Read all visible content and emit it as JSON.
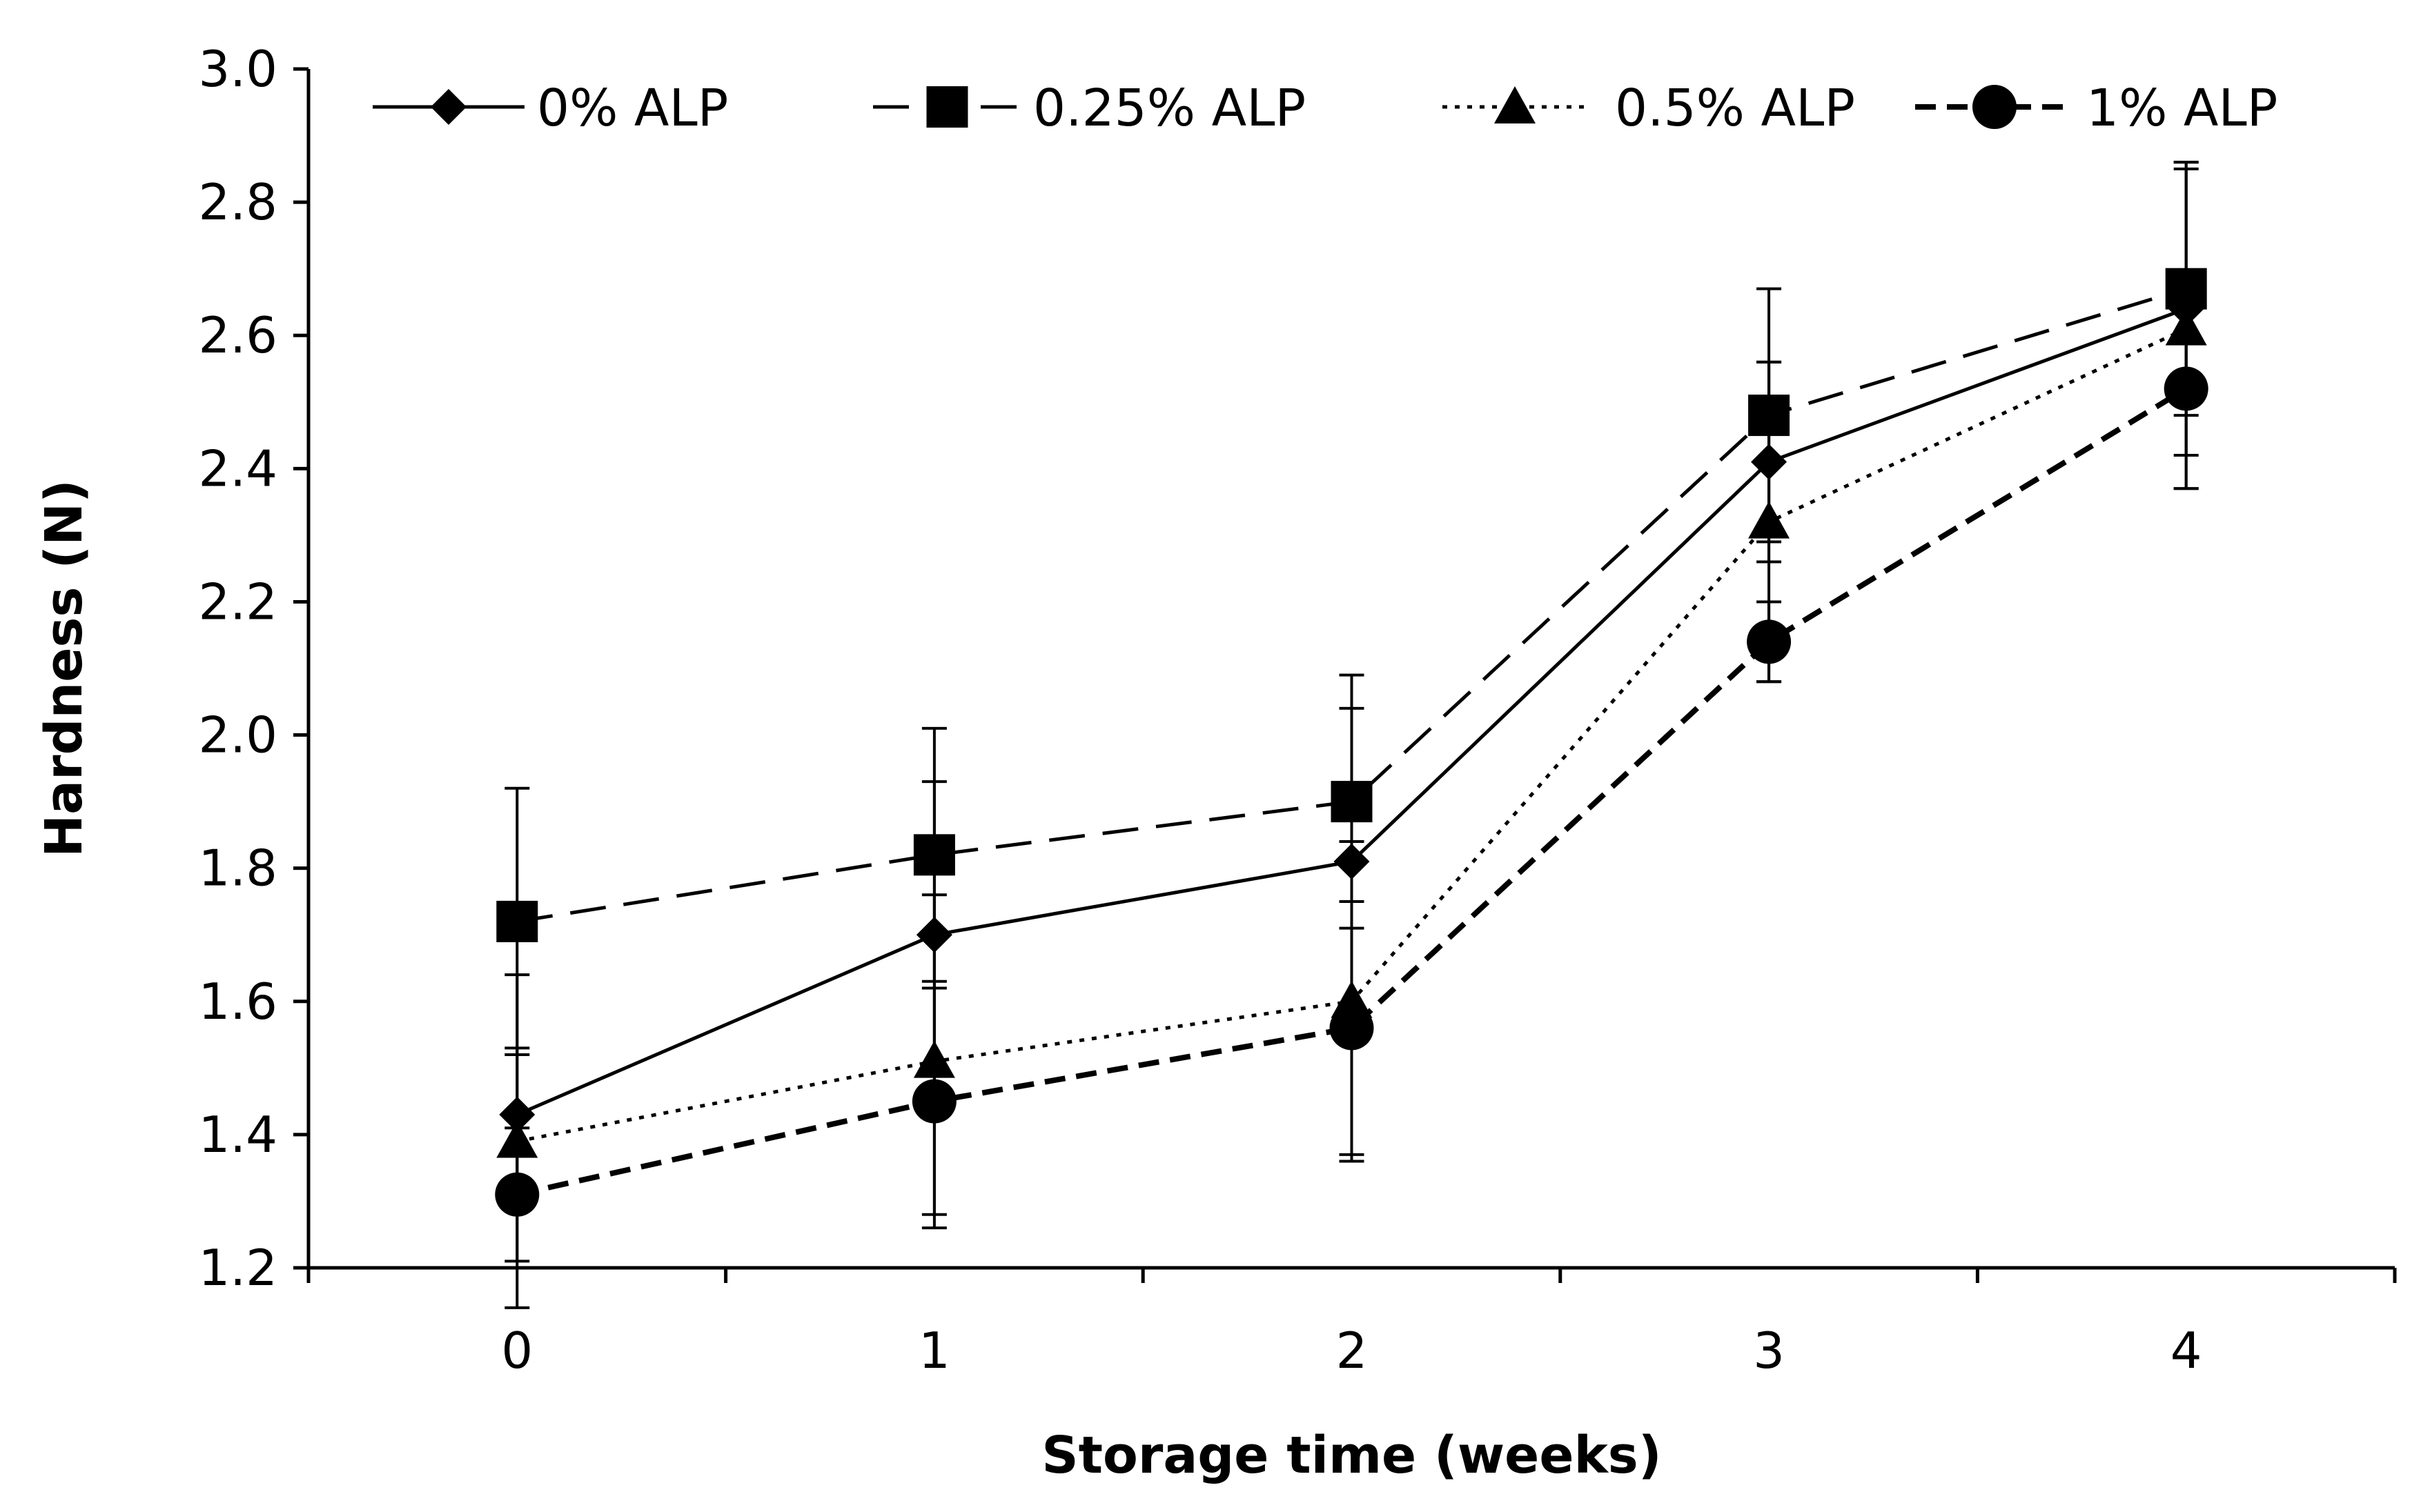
{
  "chart_data": {
    "type": "line",
    "title": "",
    "xlabel": "Storage time (weeks)",
    "ylabel": "Hardness (N)",
    "x": [
      0,
      1,
      2,
      3,
      4
    ],
    "x_tick_labels": [
      "0",
      "1",
      "2",
      "3",
      "4"
    ],
    "ylim": [
      1.2,
      3.0
    ],
    "y_ticks": [
      1.2,
      1.4,
      1.6,
      1.8,
      2.0,
      2.2,
      2.4,
      2.6,
      2.8,
      3.0
    ],
    "y_tick_labels": [
      "1.2",
      "1.4",
      "1.6",
      "1.8",
      "2.0",
      "2.2",
      "2.4",
      "2.6",
      "2.8",
      "3.0"
    ],
    "grid": false,
    "legend_position": "top",
    "series": [
      {
        "name": "0% ALP",
        "line_style": "solid",
        "marker": "diamond",
        "values": [
          1.43,
          1.7,
          1.81,
          2.41,
          2.64
        ],
        "error": [
          0.1,
          0.23,
          0.23,
          0.15,
          0.22
        ]
      },
      {
        "name": "0.25% ALP",
        "line_style": "dashed",
        "marker": "square",
        "values": [
          1.72,
          1.82,
          1.9,
          2.48,
          2.67
        ],
        "error": [
          0.2,
          0.19,
          0.19,
          0.19,
          0.19
        ]
      },
      {
        "name": "0.5% ALP",
        "line_style": "dotted",
        "marker": "triangle",
        "values": [
          1.39,
          1.51,
          1.6,
          2.32,
          2.61
        ],
        "error": [
          0.25,
          0.25,
          0.24,
          0.24,
          0.24
        ]
      },
      {
        "name": "1% ALP",
        "line_style": "bold-dashed",
        "marker": "circle",
        "values": [
          1.31,
          1.45,
          1.56,
          2.14,
          2.52
        ],
        "error": [
          0.1,
          0.17,
          0.19,
          0.06,
          0.15
        ]
      }
    ],
    "colors": {
      "ink": "#000000",
      "background": "#ffffff"
    }
  }
}
